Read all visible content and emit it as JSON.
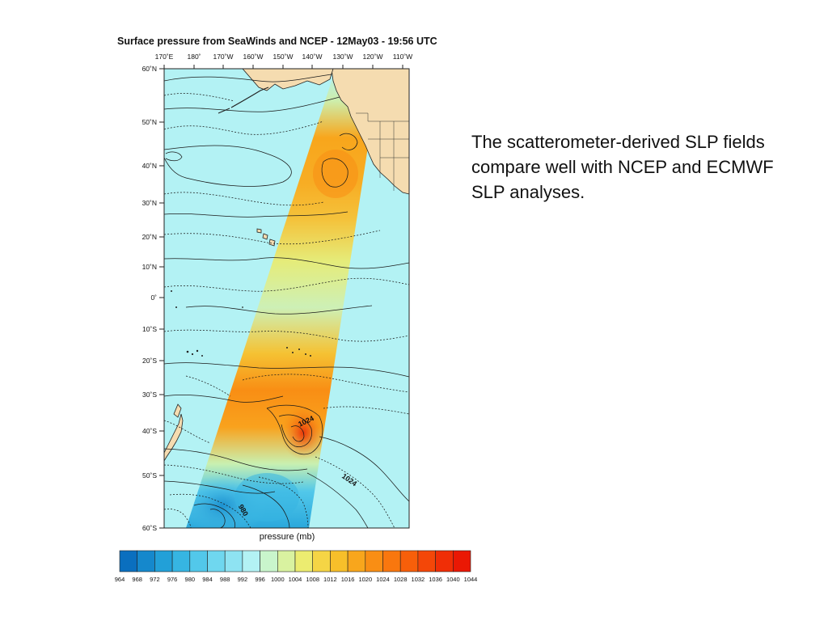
{
  "map": {
    "title": "Surface pressure from SeaWinds and NCEP - 12May03 - 19:56 UTC",
    "longitude_labels": [
      "170˚E",
      "180˚",
      "170˚W",
      "160˚W",
      "150˚W",
      "140˚W",
      "130˚W",
      "120˚W",
      "110˚W"
    ],
    "latitude_labels": [
      "60˚N",
      "50˚N",
      "40˚N",
      "30˚N",
      "20˚N",
      "10˚N",
      "0˚",
      "10˚S",
      "20˚S",
      "30˚S",
      "40˚S",
      "50˚S",
      "60˚S"
    ],
    "contour_labels": [
      "1024",
      "1024",
      "980"
    ],
    "ocean_color": "#b3f2f4",
    "land_color": "#f5dcb0"
  },
  "colorbar": {
    "label": "pressure (mb)",
    "ticks": [
      "964",
      "968",
      "972",
      "976",
      "980",
      "984",
      "988",
      "992",
      "996",
      "1000",
      "1004",
      "1008",
      "1012",
      "1016",
      "1020",
      "1024",
      "1028",
      "1032",
      "1036",
      "1040",
      "1044"
    ],
    "colors": [
      "#0a6fbf",
      "#1588cc",
      "#22a0d8",
      "#36b5e2",
      "#52c8ea",
      "#6fd7ef",
      "#8ee3f2",
      "#b3f2f4",
      "#c9f5cc",
      "#d9f2a0",
      "#ecec70",
      "#f5d545",
      "#f7bf2a",
      "#f8a61c",
      "#f98e14",
      "#f9770e",
      "#f75f0a",
      "#f44708",
      "#f02e06",
      "#ea1804"
    ]
  },
  "caption": "The scatterometer-derived SLP fields compare well with NCEP and ECMWF SLP analyses."
}
